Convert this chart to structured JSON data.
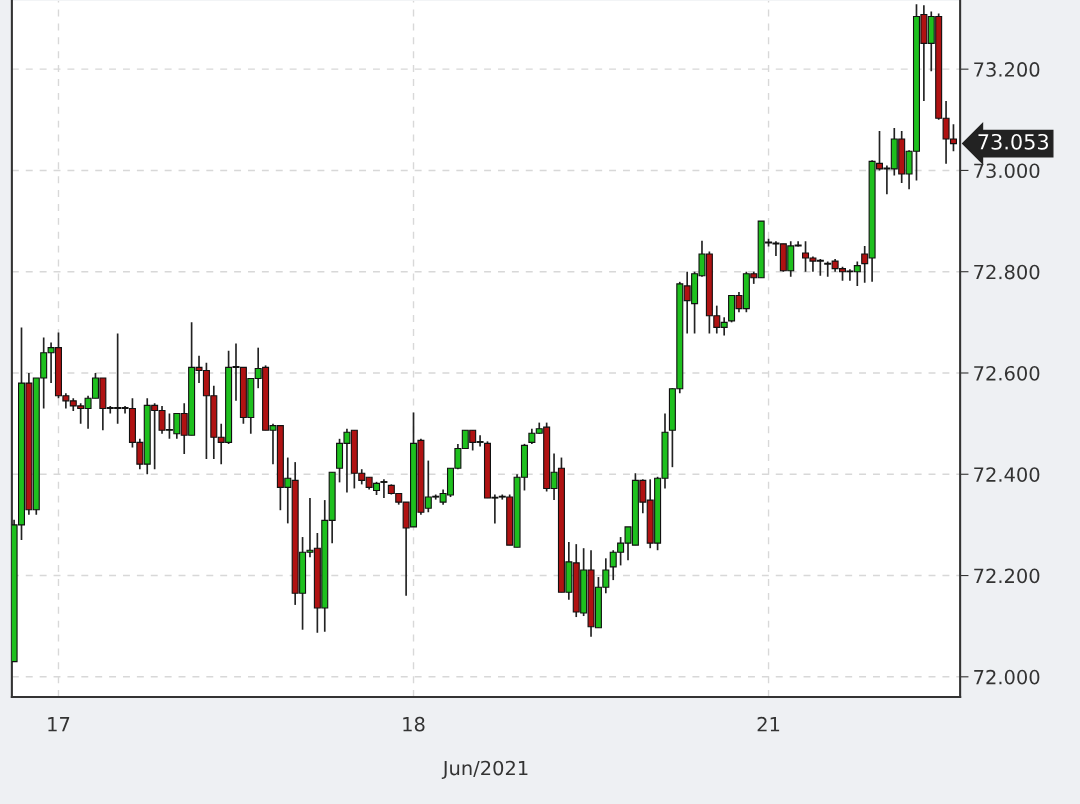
{
  "chart_data": {
    "type": "candlestick",
    "xlabel": "Jun/2021",
    "categories": [
      null,
      null,
      null,
      null,
      null,
      null,
      "17",
      null,
      null,
      null,
      null,
      null,
      null,
      null,
      null,
      null,
      null,
      null,
      null,
      null,
      null,
      null,
      null,
      null,
      null,
      null,
      null,
      null,
      null,
      null,
      null,
      null,
      null,
      null,
      null,
      null,
      null,
      null,
      null,
      null,
      null,
      null,
      null,
      null,
      null,
      null,
      null,
      null,
      null,
      null,
      null,
      null,
      null,
      null,
      "18",
      null,
      null,
      null,
      null,
      null,
      null,
      null,
      null,
      null,
      null,
      null,
      null,
      null,
      null,
      null,
      null,
      null,
      null,
      null,
      null,
      null,
      null,
      null,
      null,
      null,
      null,
      null,
      null,
      null,
      null,
      null,
      null,
      null,
      null,
      null,
      null,
      null,
      null,
      null,
      null,
      null,
      null,
      null,
      null,
      null,
      null,
      null,
      "21",
      null,
      null,
      null,
      null,
      null,
      null,
      null,
      null,
      null,
      null,
      null,
      null,
      null,
      null,
      null,
      null,
      null,
      null,
      null,
      null,
      null,
      null,
      null,
      null,
      null
    ],
    "ohlc": [
      [
        72.03,
        72.31,
        72.03,
        72.3
      ],
      [
        72.3,
        72.69,
        72.27,
        72.58
      ],
      [
        72.58,
        72.6,
        72.32,
        72.33
      ],
      [
        72.33,
        72.59,
        72.32,
        72.59
      ],
      [
        72.59,
        72.67,
        72.53,
        72.64
      ],
      [
        72.64,
        72.66,
        72.58,
        72.65
      ],
      [
        72.65,
        72.68,
        72.55,
        72.555
      ],
      [
        72.555,
        72.56,
        72.53,
        72.545
      ],
      [
        72.545,
        72.55,
        72.525,
        72.535
      ],
      [
        72.535,
        72.54,
        72.5,
        72.53
      ],
      [
        72.53,
        72.555,
        72.49,
        72.55
      ],
      [
        72.55,
        72.6,
        72.55,
        72.59
      ],
      [
        72.59,
        72.59,
        72.487,
        72.53
      ],
      [
        72.53,
        72.535,
        72.52,
        72.53
      ],
      [
        72.53,
        72.678,
        72.5,
        72.53
      ],
      [
        72.53,
        72.535,
        72.52,
        72.53
      ],
      [
        72.53,
        72.55,
        72.453,
        72.463
      ],
      [
        72.463,
        72.47,
        72.41,
        72.42
      ],
      [
        72.42,
        72.55,
        72.4,
        72.536
      ],
      [
        72.536,
        72.54,
        72.41,
        72.526
      ],
      [
        72.526,
        72.535,
        72.48,
        72.487
      ],
      [
        72.487,
        72.52,
        72.47,
        72.487
      ],
      [
        72.48,
        72.52,
        72.47,
        72.52
      ],
      [
        72.52,
        72.54,
        72.44,
        72.477
      ],
      [
        72.477,
        72.7,
        72.477,
        72.611
      ],
      [
        72.611,
        72.634,
        72.58,
        72.605
      ],
      [
        72.605,
        72.62,
        72.43,
        72.555
      ],
      [
        72.555,
        72.575,
        72.43,
        72.473
      ],
      [
        72.473,
        72.5,
        72.42,
        72.463
      ],
      [
        72.463,
        72.644,
        72.46,
        72.611
      ],
      [
        72.611,
        72.658,
        72.545,
        72.611
      ],
      [
        72.611,
        72.611,
        72.5,
        72.512
      ],
      [
        72.512,
        72.59,
        72.48,
        72.589
      ],
      [
        72.589,
        72.65,
        72.57,
        72.609
      ],
      [
        72.611,
        72.615,
        72.487,
        72.487
      ],
      [
        72.487,
        72.5,
        72.42,
        72.496
      ],
      [
        72.496,
        72.496,
        72.329,
        72.374
      ],
      [
        72.374,
        72.433,
        72.303,
        72.392
      ],
      [
        72.388,
        72.424,
        72.142,
        72.165
      ],
      [
        72.165,
        72.276,
        72.093,
        72.246
      ],
      [
        72.246,
        72.353,
        72.236,
        72.25
      ],
      [
        72.254,
        72.284,
        72.087,
        72.136
      ],
      [
        72.136,
        72.349,
        72.089,
        72.309
      ],
      [
        72.309,
        72.404,
        72.264,
        72.404
      ],
      [
        72.412,
        72.47,
        72.384,
        72.461
      ],
      [
        72.461,
        72.49,
        72.364,
        72.483
      ],
      [
        72.487,
        72.487,
        72.372,
        72.402
      ],
      [
        72.402,
        72.41,
        72.38,
        72.388
      ],
      [
        72.394,
        72.394,
        72.37,
        72.374
      ],
      [
        72.368,
        72.385,
        72.359,
        72.382
      ],
      [
        72.384,
        72.39,
        72.353,
        72.384
      ],
      [
        72.378,
        72.38,
        72.36,
        72.362
      ],
      [
        72.362,
        72.362,
        72.34,
        72.345
      ],
      [
        72.345,
        72.345,
        72.16,
        72.294
      ],
      [
        72.296,
        72.522,
        72.296,
        72.461
      ],
      [
        72.467,
        72.47,
        72.32,
        72.325
      ],
      [
        72.333,
        72.427,
        72.325,
        72.355
      ],
      [
        72.355,
        72.36,
        72.35,
        72.355
      ],
      [
        72.345,
        72.37,
        72.34,
        72.362
      ],
      [
        72.359,
        72.412,
        72.355,
        72.412
      ],
      [
        72.412,
        72.46,
        72.41,
        72.451
      ],
      [
        72.451,
        72.487,
        72.45,
        72.487
      ],
      [
        72.487,
        72.487,
        72.447,
        72.463
      ],
      [
        72.463,
        72.477,
        72.455,
        72.463
      ],
      [
        72.461,
        72.465,
        72.353,
        72.353
      ],
      [
        72.353,
        72.36,
        72.303,
        72.353
      ],
      [
        72.355,
        72.36,
        72.35,
        72.355
      ],
      [
        72.355,
        72.36,
        72.26,
        72.26
      ],
      [
        72.256,
        72.4,
        72.256,
        72.394
      ],
      [
        72.394,
        72.46,
        72.368,
        72.457
      ],
      [
        72.463,
        72.49,
        72.46,
        72.481
      ],
      [
        72.481,
        72.502,
        72.48,
        72.49
      ],
      [
        72.493,
        72.502,
        72.366,
        72.372
      ],
      [
        72.372,
        72.441,
        72.349,
        72.404
      ],
      [
        72.412,
        72.433,
        72.167,
        72.167
      ],
      [
        72.167,
        72.266,
        72.152,
        72.227
      ],
      [
        72.225,
        72.262,
        72.118,
        72.128
      ],
      [
        72.126,
        72.254,
        72.12,
        72.211
      ],
      [
        72.211,
        72.25,
        72.079,
        72.099
      ],
      [
        72.097,
        72.197,
        72.097,
        72.177
      ],
      [
        72.177,
        72.234,
        72.165,
        72.211
      ],
      [
        72.217,
        72.25,
        72.191,
        72.246
      ],
      [
        72.246,
        72.276,
        72.22,
        72.264
      ],
      [
        72.264,
        72.296,
        72.23,
        72.296
      ],
      [
        72.26,
        72.402,
        72.26,
        72.388
      ],
      [
        72.388,
        72.39,
        72.323,
        72.345
      ],
      [
        72.349,
        72.39,
        72.254,
        72.264
      ],
      [
        72.264,
        72.395,
        72.25,
        72.392
      ],
      [
        72.392,
        72.52,
        72.372,
        72.483
      ],
      [
        72.487,
        72.57,
        72.414,
        72.569
      ],
      [
        72.569,
        72.78,
        72.56,
        72.776
      ],
      [
        72.772,
        72.8,
        72.678,
        72.743
      ],
      [
        72.737,
        72.8,
        72.678,
        72.796
      ],
      [
        72.792,
        72.861,
        72.79,
        72.835
      ],
      [
        72.835,
        72.84,
        72.678,
        72.713
      ],
      [
        72.713,
        72.733,
        72.678,
        72.69
      ],
      [
        72.69,
        72.71,
        72.674,
        72.7
      ],
      [
        72.703,
        72.753,
        72.7,
        72.753
      ],
      [
        72.753,
        72.76,
        72.72,
        72.727
      ],
      [
        72.727,
        72.8,
        72.72,
        72.796
      ],
      [
        72.796,
        72.8,
        72.776,
        72.788
      ],
      [
        72.788,
        72.9,
        72.788,
        72.9
      ],
      [
        72.857,
        72.865,
        72.85,
        72.857
      ],
      [
        72.855,
        72.86,
        72.831,
        72.855
      ],
      [
        72.855,
        72.855,
        72.8,
        72.802
      ],
      [
        72.802,
        72.86,
        72.79,
        72.851
      ],
      [
        72.851,
        72.86,
        72.85,
        72.851
      ],
      [
        72.837,
        72.86,
        72.8,
        72.827
      ],
      [
        72.827,
        72.83,
        72.8,
        72.821
      ],
      [
        72.821,
        72.825,
        72.792,
        72.821
      ],
      [
        72.815,
        72.82,
        72.79,
        72.815
      ],
      [
        72.821,
        72.825,
        72.8,
        72.806
      ],
      [
        72.806,
        72.81,
        72.782,
        72.8
      ],
      [
        72.8,
        72.805,
        72.782,
        72.8
      ],
      [
        72.8,
        72.82,
        72.772,
        72.812
      ],
      [
        72.835,
        72.851,
        72.778,
        72.816
      ],
      [
        72.827,
        73.02,
        72.78,
        73.018
      ],
      [
        73.014,
        73.078,
        73.0,
        73.003
      ],
      [
        73.003,
        73.01,
        72.953,
        73.003
      ],
      [
        73.003,
        73.084,
        72.99,
        73.062
      ],
      [
        73.062,
        73.078,
        72.975,
        72.993
      ],
      [
        72.993,
        73.04,
        72.963,
        73.038
      ],
      [
        73.038,
        73.328,
        72.98,
        73.304
      ],
      [
        73.308,
        73.326,
        73.137,
        73.251
      ],
      [
        73.251,
        73.314,
        73.196,
        73.304
      ],
      [
        73.304,
        73.31,
        73.1,
        73.103
      ],
      [
        73.103,
        73.137,
        73.013,
        73.062
      ],
      [
        73.062,
        73.091,
        73.038,
        73.053
      ]
    ],
    "ylim": [
      71.96,
      73.335
    ],
    "yticks": [
      {
        "value": 72.0,
        "label": "72.000"
      },
      {
        "value": 72.2,
        "label": "72.200"
      },
      {
        "value": 72.4,
        "label": "72.400"
      },
      {
        "value": 72.6,
        "label": "72.600"
      },
      {
        "value": 72.8,
        "label": "72.800"
      },
      {
        "value": 73.0,
        "label": "73.000"
      },
      {
        "value": 73.2,
        "label": "73.200"
      }
    ],
    "grid": true,
    "annotations": [
      "73.053"
    ]
  }
}
